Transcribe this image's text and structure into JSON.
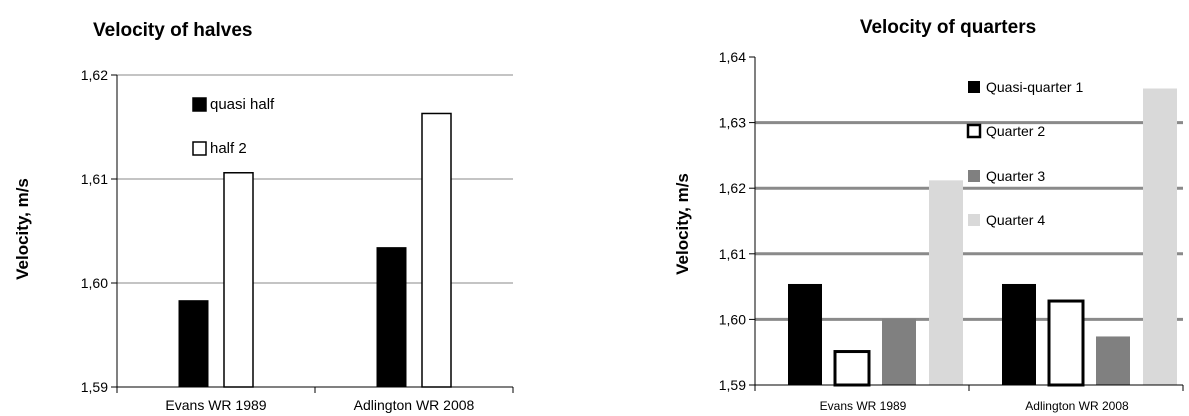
{
  "chart_data": [
    {
      "type": "bar",
      "title": "Velocity of halves",
      "xlabel": "",
      "ylabel": "Velocity, m/s",
      "ylim": [
        1.59,
        1.62
      ],
      "yticks": [
        "1,59",
        "1,60",
        "1,61",
        "1,62"
      ],
      "categories": [
        "Evans WR 1989",
        "Adlington WR 2008"
      ],
      "series": [
        {
          "name": "quasi half",
          "values": [
            1.5983,
            1.6034
          ],
          "color": "#000000",
          "fill": "solid"
        },
        {
          "name": "half 2",
          "values": [
            1.6106,
            1.6163
          ],
          "color": "#ffffff",
          "fill": "outline"
        }
      ],
      "legend": "top-center",
      "grid": true
    },
    {
      "type": "bar",
      "title": "Velocity of quarters",
      "xlabel": "",
      "ylabel": "Velocity, m/s",
      "ylim": [
        1.59,
        1.64
      ],
      "yticks": [
        "1,59",
        "1,60",
        "1,61",
        "1,62",
        "1,63",
        "1,64"
      ],
      "categories": [
        "Evans WR 1989",
        "Adlington WR 2008"
      ],
      "series": [
        {
          "name": "Quasi-quarter 1",
          "values": [
            1.6054,
            1.6054
          ],
          "color": "#000000",
          "fill": "solid"
        },
        {
          "name": "Quarter 2",
          "values": [
            1.5951,
            1.6028
          ],
          "color": "#ffffff",
          "fill": "outline"
        },
        {
          "name": "Quarter 3",
          "values": [
            1.6001,
            1.5974
          ],
          "color": "#808080",
          "fill": "solid"
        },
        {
          "name": "Quarter 4",
          "values": [
            1.6212,
            1.6352
          ],
          "color": "#d9d9d9",
          "fill": "solid"
        }
      ],
      "legend": "top-right",
      "grid": true
    }
  ]
}
